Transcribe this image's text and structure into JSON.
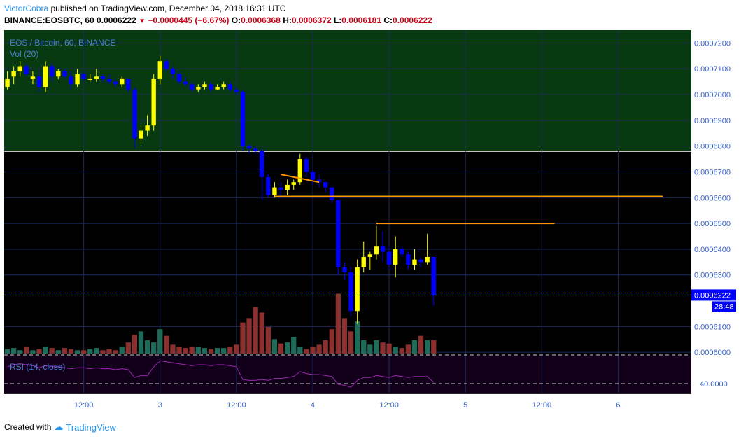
{
  "header": {
    "author": "VictorCobra",
    "published": " published on TradingView.com, December 04, 2018 16:31 UTC",
    "symbol": "BINANCE:EOSBTC, 60",
    "last": "0.0006222",
    "change": "−0.0000445 (−6.67%)",
    "o_label": "O:",
    "o": "0.0006368",
    "h_label": "H:",
    "h": "0.0006372",
    "l_label": "L:",
    "l": "0.0006181",
    "c_label": "C:",
    "c": "0.0006222"
  },
  "footer": {
    "created": "Created with",
    "brand": "TradingView"
  },
  "colors": {
    "up": "#ffff00",
    "down": "#0000ff",
    "bg": "#000000",
    "zone": "#073a10",
    "grid": "#1e2a5c",
    "vol_up": "#1f6b5a",
    "vol_down": "#8b2f2f",
    "level": "#ff9800",
    "rsi": "#9c27b0",
    "label_blue": "#4a7fd4"
  },
  "chart_data": {
    "type": "candlestick",
    "title": "EOS / Bitcoin, 60, BINANCE",
    "volume_label": "Vol (20)",
    "rsi_label": "RSI (14, close)",
    "y_ticks": [
      "0.0007200",
      "0.0007100",
      "0.0007000",
      "0.0006900",
      "0.0006800",
      "0.0006700",
      "0.0006600",
      "0.0006500",
      "0.0006400",
      "0.0006300",
      "0.0006100",
      "0.0006000"
    ],
    "y_tick_values": [
      0.00072,
      0.00071,
      0.0007,
      0.00069,
      0.00068,
      0.00067,
      0.00066,
      0.00065,
      0.00064,
      0.00063,
      0.00061,
      0.0006
    ],
    "ylim": [
      0.0005995,
      0.000725
    ],
    "price_label": "0.0006222",
    "countdown": "28:48",
    "rsi_tick": "40.0000",
    "x_ticks": [
      {
        "label": "12:00",
        "i": 12
      },
      {
        "label": "3",
        "i": 24
      },
      {
        "label": "12:00",
        "i": 36
      },
      {
        "label": "4",
        "i": 48
      },
      {
        "label": "12:00",
        "i": 60
      },
      {
        "label": "5",
        "i": 72
      },
      {
        "label": "12:00",
        "i": 84
      },
      {
        "label": "6",
        "i": 96
      }
    ],
    "x_count": 108,
    "candles": [
      [
        0.000703,
        0.000709,
        0.000702,
        0.000706
      ],
      [
        0.000707,
        0.000711,
        0.000704,
        0.000709
      ],
      [
        0.000709,
        0.000713,
        0.000707,
        0.000711
      ],
      [
        0.000711,
        0.000712,
        0.000707,
        0.000708
      ],
      [
        0.000706,
        0.000709,
        0.000704,
        0.000707
      ],
      [
        0.000707,
        0.000709,
        0.000701,
        0.000703
      ],
      [
        0.000703,
        0.000713,
        0.000701,
        0.000711
      ],
      [
        0.000711,
        0.000712,
        0.000705,
        0.000707
      ],
      [
        0.000707,
        0.00071,
        0.000706,
        0.000709
      ],
      [
        0.000709,
        0.00071,
        0.000706,
        0.000707
      ],
      [
        0.000707,
        0.000709,
        0.000702,
        0.000704
      ],
      [
        0.000704,
        0.00071,
        0.000703,
        0.000708
      ],
      [
        0.000708,
        0.000709,
        0.000705,
        0.000706
      ],
      [
        0.000706,
        0.000708,
        0.000705,
        0.000706
      ],
      [
        0.000706,
        0.00071,
        0.000705,
        0.000707
      ],
      [
        0.000707,
        0.000708,
        0.000705,
        0.000706
      ],
      [
        0.000706,
        0.000708,
        0.000704,
        0.000705
      ],
      [
        0.000705,
        0.000706,
        0.000703,
        0.000704
      ],
      [
        0.000704,
        0.000707,
        0.000703,
        0.000706
      ],
      [
        0.000706,
        0.000706,
        0.000701,
        0.000702
      ],
      [
        0.000702,
        0.000703,
        0.000679,
        0.000683
      ],
      [
        0.000683,
        0.000688,
        0.000681,
        0.000686
      ],
      [
        0.000686,
        0.000692,
        0.000684,
        0.000688
      ],
      [
        0.000688,
        0.000708,
        0.000686,
        0.000706
      ],
      [
        0.000706,
        0.000715,
        0.000704,
        0.000713
      ],
      [
        0.000713,
        0.000714,
        0.000709,
        0.00071
      ],
      [
        0.00071,
        0.000711,
        0.000706,
        0.000708
      ],
      [
        0.000708,
        0.000709,
        0.000704,
        0.000705
      ],
      [
        0.000705,
        0.000707,
        0.000703,
        0.000704
      ],
      [
        0.000704,
        0.000705,
        0.000701,
        0.000702
      ],
      [
        0.000702,
        0.000704,
        0.000701,
        0.000703
      ],
      [
        0.000703,
        0.000705,
        0.000702,
        0.000704
      ],
      [
        0.000704,
        0.000705,
        0.000701,
        0.000702
      ],
      [
        0.000702,
        0.000704,
        0.000702,
        0.000703
      ],
      [
        0.000703,
        0.000705,
        0.000702,
        0.000704
      ],
      [
        0.000704,
        0.000705,
        0.000701,
        0.000702
      ],
      [
        0.000702,
        0.000703,
        0.0007,
        0.000701
      ],
      [
        0.000701,
        0.000702,
        0.000678,
        0.00068
      ],
      [
        0.00068,
        0.000681,
        0.000677,
        0.000679
      ],
      [
        0.000679,
        0.00068,
        0.000677,
        0.000678
      ],
      [
        0.000678,
        0.000679,
        0.000659,
        0.000668
      ],
      [
        0.000668,
        0.000669,
        0.00066,
        0.000661
      ],
      [
        0.000661,
        0.000666,
        0.00066,
        0.000664
      ],
      [
        0.000664,
        0.000666,
        0.00066,
        0.000663
      ],
      [
        0.000663,
        0.000667,
        0.000661,
        0.000665
      ],
      [
        0.000665,
        0.000667,
        0.000663,
        0.000666
      ],
      [
        0.000666,
        0.000677,
        0.000665,
        0.000675
      ],
      [
        0.000675,
        0.000676,
        0.000668,
        0.00067
      ],
      [
        0.00067,
        0.000671,
        0.000665,
        0.000667
      ],
      [
        0.000667,
        0.000669,
        0.000664,
        0.000666
      ],
      [
        0.000666,
        0.000666,
        0.000662,
        0.000664
      ],
      [
        0.000664,
        0.000664,
        0.000658,
        0.000659
      ],
      [
        0.000659,
        0.000659,
        0.00063,
        0.000633
      ],
      [
        0.000633,
        0.000635,
        0.000628,
        0.000631
      ],
      [
        0.000631,
        0.000633,
        0.000614,
        0.000616
      ],
      [
        0.000616,
        0.000636,
        0.000611,
        0.000633
      ],
      [
        0.000633,
        0.000643,
        0.000631,
        0.000637
      ],
      [
        0.000637,
        0.000639,
        0.000632,
        0.000638
      ],
      [
        0.000638,
        0.000649,
        0.000636,
        0.000641
      ],
      [
        0.000641,
        0.000647,
        0.000635,
        0.000639
      ],
      [
        0.000639,
        0.000641,
        0.000632,
        0.000634
      ],
      [
        0.000634,
        0.000645,
        0.000629,
        0.00064
      ],
      [
        0.00064,
        0.000641,
        0.000637,
        0.000638
      ],
      [
        0.000638,
        0.000639,
        0.000632,
        0.000634
      ],
      [
        0.000634,
        0.00064,
        0.000632,
        0.000636
      ],
      [
        0.000636,
        0.000637,
        0.000633,
        0.000635
      ],
      [
        0.000635,
        0.000646,
        0.000634,
        0.000637
      ],
      [
        0.000637,
        0.000637,
        0.000618,
        0.000622
      ]
    ],
    "volume": [
      4,
      5,
      3,
      6,
      3,
      4,
      6,
      5,
      3,
      5,
      4,
      3,
      3,
      4,
      5,
      3,
      4,
      3,
      6,
      10,
      17,
      20,
      12,
      10,
      22,
      16,
      8,
      6,
      5,
      6,
      6,
      5,
      4,
      5,
      5,
      6,
      8,
      28,
      32,
      42,
      37,
      24,
      13,
      9,
      10,
      15,
      6,
      4,
      6,
      8,
      12,
      22,
      54,
      32,
      20,
      29,
      12,
      8,
      12,
      10,
      9,
      6,
      5,
      8,
      12,
      16,
      12,
      12
    ],
    "rsi": [
      58,
      60,
      61,
      60,
      59,
      57,
      59,
      58,
      58,
      57,
      56,
      57,
      57,
      56,
      57,
      56,
      56,
      55,
      56,
      55,
      47,
      49,
      49,
      58,
      64,
      63,
      62,
      61,
      60,
      59,
      60,
      60,
      59,
      60,
      60,
      59,
      58,
      45,
      44,
      44,
      45,
      44,
      46,
      46,
      47,
      48,
      53,
      51,
      50,
      50,
      49,
      48,
      40,
      39,
      37,
      44,
      47,
      47,
      49,
      48,
      47,
      49,
      48,
      47,
      48,
      48,
      48,
      42
    ],
    "levels": [
      {
        "price": 0.0006605,
        "from": 42,
        "to": 103
      },
      {
        "price": 0.00065,
        "from": 58,
        "to": 86
      }
    ],
    "trendline": [
      {
        "i": 43,
        "p": 0.000669
      },
      {
        "i": 49,
        "p": 0.000666
      }
    ],
    "zone": [
      0.000678,
      0.000725
    ]
  }
}
